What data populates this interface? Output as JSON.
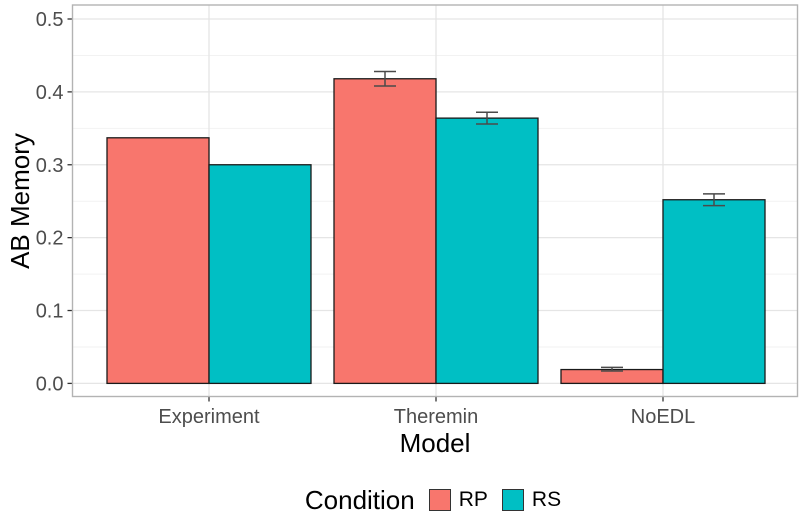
{
  "chart_data": {
    "type": "bar",
    "title": "",
    "xlabel": "Model",
    "ylabel": "AB Memory",
    "categories": [
      "Experiment",
      "Theremin",
      "NoEDL"
    ],
    "series": [
      {
        "name": "RP",
        "color": "#F8766D",
        "values": [
          0.337,
          0.418,
          0.019
        ],
        "error_low": [
          null,
          0.408,
          0.017
        ],
        "error_high": [
          null,
          0.428,
          0.022
        ]
      },
      {
        "name": "RS",
        "color": "#00BFC4",
        "values": [
          0.3,
          0.364,
          0.252
        ],
        "error_low": [
          null,
          0.356,
          0.244
        ],
        "error_high": [
          null,
          0.372,
          0.26
        ]
      }
    ],
    "ylim": [
      0,
      0.5
    ],
    "yticks": [
      0,
      0.1,
      0.2,
      0.3,
      0.4,
      0.5
    ],
    "ytick_labels": [
      "0.0",
      "0.1",
      "0.2",
      "0.3",
      "0.4",
      "0.5"
    ],
    "minor_ticks": [
      0.05,
      0.15,
      0.25,
      0.35,
      0.45
    ],
    "grid": true,
    "legend_title": "Condition",
    "legend_position": "bottom",
    "bar_outline": "#1A1A1A",
    "errorbar_color": "#4A4A4A",
    "grid_major_color": "#E5E5E5",
    "grid_minor_color": "#F2F2F2",
    "panel_border_color": "#B3B3B3",
    "tick_color": "#333333"
  }
}
